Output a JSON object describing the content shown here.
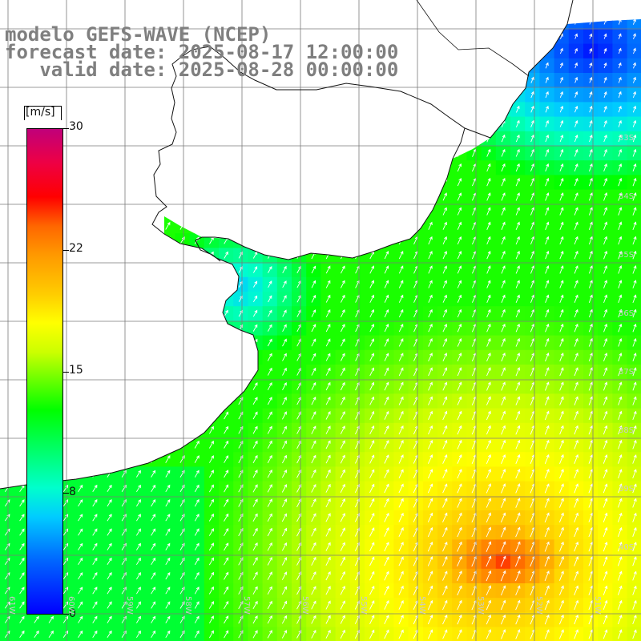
{
  "header": {
    "line1": "modelo GEFS-WAVE (NCEP)",
    "line2": "forecast date: 2025-08-17 12:00:00",
    "line3": "   valid date: 2025-08-28 00:00:00"
  },
  "colorbar": {
    "unit": "[m/s]",
    "ticks": [
      "30",
      "22",
      "15",
      "8",
      "0"
    ],
    "colors": [
      "#0000ff",
      "#00ccff",
      "#00ff00",
      "#ffff00",
      "#ff9900",
      "#ff0000",
      "#c0007a"
    ]
  },
  "lat_labels": [
    "33S",
    "34S",
    "35S",
    "36S",
    "37S",
    "38S",
    "39S",
    "40S"
  ],
  "lon_labels": [
    "61W",
    "60W",
    "59W",
    "58W",
    "57W",
    "56W",
    "55W",
    "54W",
    "53W",
    "52W",
    "51W"
  ],
  "field": {
    "description_units": "m/s",
    "wind_direction": "towards north-east"
  }
}
